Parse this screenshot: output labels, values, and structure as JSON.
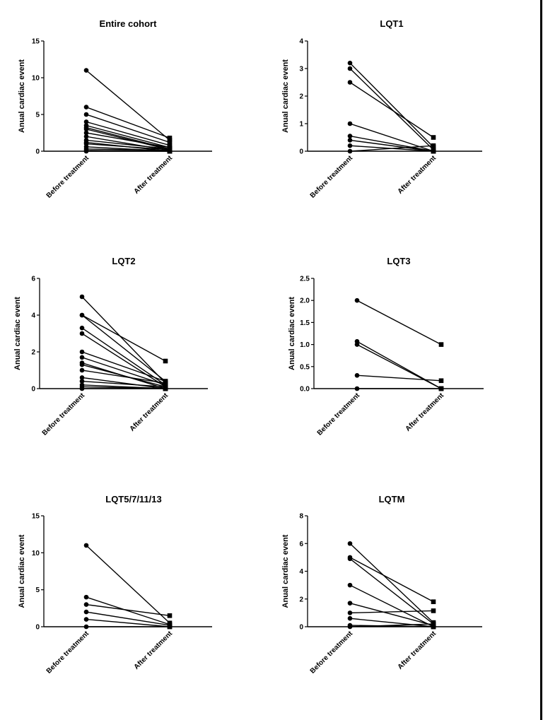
{
  "chart_data": [
    {
      "type": "line",
      "title": "Entire cohort",
      "ylabel": "Anual cardiac event",
      "categories": [
        "Before treatment",
        "After treatment"
      ],
      "ylim": [
        0,
        15
      ],
      "yticks": [
        "0",
        "5",
        "10",
        "15"
      ],
      "pairs": [
        [
          11,
          1.5
        ],
        [
          6,
          1.8
        ],
        [
          5,
          1.2
        ],
        [
          4,
          0.8
        ],
        [
          3.5,
          0.5
        ],
        [
          3.2,
          0.3
        ],
        [
          3,
          0.2
        ],
        [
          2.5,
          0.5
        ],
        [
          2,
          0.1
        ],
        [
          1.5,
          0.3
        ],
        [
          1.2,
          0
        ],
        [
          1,
          0.2
        ],
        [
          0.6,
          0
        ],
        [
          0.3,
          0.1
        ],
        [
          0.1,
          0
        ],
        [
          0,
          0
        ]
      ]
    },
    {
      "type": "line",
      "title": "LQT1",
      "ylabel": "Anual cardiac event",
      "categories": [
        "Before treatment",
        "After treatment"
      ],
      "ylim": [
        0,
        4
      ],
      "yticks": [
        "0",
        "1",
        "2",
        "3",
        "4"
      ],
      "pairs": [
        [
          3.2,
          0.15
        ],
        [
          3.0,
          0.05
        ],
        [
          2.5,
          0.5
        ],
        [
          1.0,
          0
        ],
        [
          0.55,
          0
        ],
        [
          0.4,
          0
        ],
        [
          0.2,
          0
        ],
        [
          0,
          0.2
        ]
      ]
    },
    {
      "type": "line",
      "title": "LQT2",
      "ylabel": "Anual cardiac event",
      "categories": [
        "Before treatment",
        "After treatment"
      ],
      "ylim": [
        0,
        6
      ],
      "yticks": [
        "0",
        "2",
        "4",
        "6"
      ],
      "pairs": [
        [
          5,
          0.3
        ],
        [
          4,
          1.5
        ],
        [
          4,
          0.4
        ],
        [
          3.3,
          0.2
        ],
        [
          3,
          0.1
        ],
        [
          2,
          0.4
        ],
        [
          1.7,
          0.2
        ],
        [
          1.4,
          0
        ],
        [
          1.3,
          0.1
        ],
        [
          1,
          0.3
        ],
        [
          0.6,
          0
        ],
        [
          0.4,
          0.1
        ],
        [
          0.2,
          0
        ],
        [
          0.1,
          0
        ],
        [
          0,
          0
        ]
      ]
    },
    {
      "type": "line",
      "title": "LQT3",
      "ylabel": "Anual cardiac event",
      "categories": [
        "Before treatment",
        "After treatment"
      ],
      "ylim": [
        0,
        2.5
      ],
      "yticks": [
        "0.0",
        "0.5",
        "1.0",
        "1.5",
        "2.0",
        "2.5"
      ],
      "pairs": [
        [
          2.0,
          1.0
        ],
        [
          1.07,
          0
        ],
        [
          1.0,
          0
        ],
        [
          0.3,
          0.18
        ],
        [
          0,
          0
        ]
      ]
    },
    {
      "type": "line",
      "title": "LQT5/7/11/13",
      "ylabel": "Anual cardiac event",
      "categories": [
        "Before treatment",
        "After treatment"
      ],
      "ylim": [
        0,
        15
      ],
      "yticks": [
        "0",
        "5",
        "10",
        "15"
      ],
      "pairs": [
        [
          11,
          0.5
        ],
        [
          4,
          0.3
        ],
        [
          3,
          1.5
        ],
        [
          2,
          0.2
        ],
        [
          1,
          0
        ],
        [
          0,
          0
        ]
      ]
    },
    {
      "type": "line",
      "title": "LQTM",
      "ylabel": "Anual cardiac event",
      "categories": [
        "Before treatment",
        "After treatment"
      ],
      "ylim": [
        0,
        8
      ],
      "yticks": [
        "0",
        "2",
        "4",
        "6",
        "8"
      ],
      "pairs": [
        [
          6,
          0.3
        ],
        [
          5,
          1.8
        ],
        [
          4.9,
          0.2
        ],
        [
          3,
          0
        ],
        [
          1.7,
          0.1
        ],
        [
          1,
          1.15
        ],
        [
          0.6,
          0
        ],
        [
          0.1,
          0
        ],
        [
          0,
          0.2
        ]
      ]
    }
  ]
}
